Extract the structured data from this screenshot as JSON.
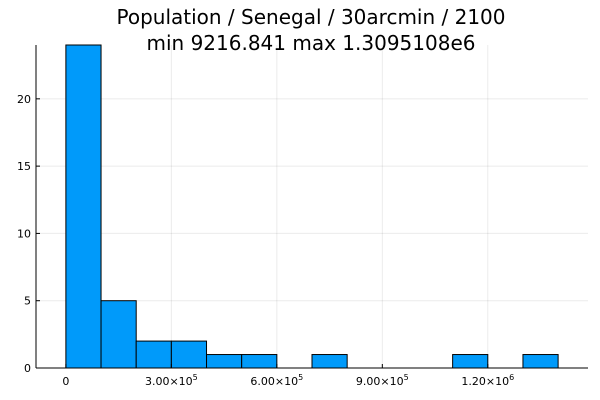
{
  "chart_data": {
    "type": "bar",
    "title": "Population / Senegal / 30arcmin / 2100",
    "subtitle": "min 9216.841  max 1.3095108e6",
    "xlabel": "",
    "ylabel": "",
    "bar_color": "#009AFA",
    "grid": true,
    "bins": [
      {
        "x0": 0,
        "x1": 100000,
        "count": 24
      },
      {
        "x0": 100000,
        "x1": 200000,
        "count": 5
      },
      {
        "x0": 200000,
        "x1": 300000,
        "count": 2
      },
      {
        "x0": 300000,
        "x1": 400000,
        "count": 2
      },
      {
        "x0": 400000,
        "x1": 500000,
        "count": 1
      },
      {
        "x0": 500000,
        "x1": 600000,
        "count": 1
      },
      {
        "x0": 600000,
        "x1": 700000,
        "count": 0
      },
      {
        "x0": 700000,
        "x1": 800000,
        "count": 1
      },
      {
        "x0": 800000,
        "x1": 900000,
        "count": 0
      },
      {
        "x0": 900000,
        "x1": 1000000,
        "count": 0
      },
      {
        "x0": 1000000,
        "x1": 1100000,
        "count": 0
      },
      {
        "x0": 1100000,
        "x1": 1200000,
        "count": 1
      },
      {
        "x0": 1200000,
        "x1": 1300000,
        "count": 0
      },
      {
        "x0": 1300000,
        "x1": 1400000,
        "count": 1
      }
    ],
    "xlim": [
      -85000,
      1485000
    ],
    "ylim": [
      0,
      24
    ],
    "x_ticks": [
      {
        "value": 0,
        "mantissa": "0",
        "exp": ""
      },
      {
        "value": 300000,
        "mantissa": "3.00×10",
        "exp": "5"
      },
      {
        "value": 600000,
        "mantissa": "6.00×10",
        "exp": "5"
      },
      {
        "value": 900000,
        "mantissa": "9.00×10",
        "exp": "5"
      },
      {
        "value": 1200000,
        "mantissa": "1.20×10",
        "exp": "6"
      }
    ],
    "y_ticks": [
      {
        "value": 0,
        "label": "0"
      },
      {
        "value": 5,
        "label": "5"
      },
      {
        "value": 10,
        "label": "10"
      },
      {
        "value": 15,
        "label": "15"
      },
      {
        "value": 20,
        "label": "20"
      }
    ]
  }
}
